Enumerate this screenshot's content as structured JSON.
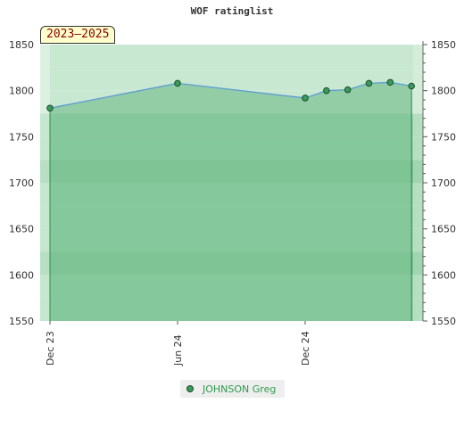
{
  "chart_data": {
    "type": "area",
    "title": "WOF ratinglist",
    "period_label": "2023–2025",
    "ylim": [
      1550,
      1850
    ],
    "y_ticks": [
      1550,
      1600,
      1650,
      1700,
      1750,
      1800,
      1850
    ],
    "x_tick_labels": [
      "Dec 23",
      "Jun 24",
      "Dec 24"
    ],
    "x_start": "2023-12-01",
    "x_ticks": [
      "2023-12-01",
      "2024-06-01",
      "2024-12-01"
    ],
    "series": [
      {
        "name": "JOHNSON Greg",
        "points": [
          {
            "x": "2023-12-01",
            "y": 1781
          },
          {
            "x": "2024-06-01",
            "y": 1808
          },
          {
            "x": "2024-12-01",
            "y": 1792
          },
          {
            "x": "2025-01-01",
            "y": 1800
          },
          {
            "x": "2025-02-01",
            "y": 1801
          },
          {
            "x": "2025-03-01",
            "y": 1808
          },
          {
            "x": "2025-04-01",
            "y": 1809
          },
          {
            "x": "2025-05-01",
            "y": 1805
          }
        ]
      }
    ],
    "colors": {
      "line": "#5b9bd5",
      "area": "#7fc495",
      "marker": "#3a9a5a",
      "band_dark": "#7cc292",
      "band_mid": "#99d3aa",
      "band_light": "#c9e8d2",
      "stripe_edge": "#e9f5ec"
    }
  }
}
